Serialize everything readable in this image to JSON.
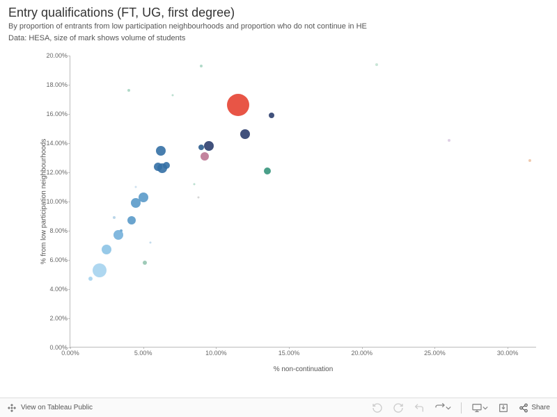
{
  "header": {
    "title": "Entry qualifications (FT, UG, first degree)",
    "subtitle1": "By proportion of entrants from low participation neighbourhoods and proportion who do not continue in HE",
    "subtitle2": "Data: HESA, size of mark shows volume of students"
  },
  "chart": {
    "type": "scatter",
    "x_label": "% non-continuation",
    "y_label": "% from low participation neighbourhoods",
    "xlim": [
      0,
      32
    ],
    "ylim": [
      0,
      20
    ],
    "x_ticks": [
      0,
      5,
      10,
      15,
      20,
      25,
      30
    ],
    "y_ticks": [
      0,
      2,
      4,
      6,
      8,
      10,
      12,
      14,
      16,
      18,
      20
    ],
    "tick_format_pct": true,
    "background_color": "#ffffff",
    "axis_color": "#bbbbbb",
    "label_fontsize": 10,
    "tick_fontsize": 9,
    "points": [
      {
        "x": 11.5,
        "y": 16.6,
        "r": 16,
        "color": "#e74c3c",
        "opacity": 0.95
      },
      {
        "x": 13.8,
        "y": 15.9,
        "r": 4,
        "color": "#2c3e6e",
        "opacity": 0.9
      },
      {
        "x": 12.0,
        "y": 14.6,
        "r": 7,
        "color": "#2c3e6e",
        "opacity": 0.9
      },
      {
        "x": 9.5,
        "y": 13.8,
        "r": 7,
        "color": "#2c3e6e",
        "opacity": 0.9
      },
      {
        "x": 9.0,
        "y": 13.7,
        "r": 4,
        "color": "#2c5d8e",
        "opacity": 0.9
      },
      {
        "x": 6.2,
        "y": 13.5,
        "r": 7,
        "color": "#3470a5",
        "opacity": 0.9
      },
      {
        "x": 9.2,
        "y": 13.1,
        "r": 6,
        "color": "#b86d8d",
        "opacity": 0.85
      },
      {
        "x": 6.0,
        "y": 12.4,
        "r": 6,
        "color": "#3470a5",
        "opacity": 0.9
      },
      {
        "x": 6.3,
        "y": 12.3,
        "r": 7,
        "color": "#3470a5",
        "opacity": 0.9
      },
      {
        "x": 6.6,
        "y": 12.5,
        "r": 5,
        "color": "#3470a5",
        "opacity": 0.9
      },
      {
        "x": 13.5,
        "y": 12.1,
        "r": 5,
        "color": "#2a8e74",
        "opacity": 0.85
      },
      {
        "x": 5.0,
        "y": 10.3,
        "r": 7,
        "color": "#5a9ac9",
        "opacity": 0.9
      },
      {
        "x": 4.5,
        "y": 9.9,
        "r": 7,
        "color": "#5a9ac9",
        "opacity": 0.9
      },
      {
        "x": 4.2,
        "y": 8.7,
        "r": 6,
        "color": "#5a9ac9",
        "opacity": 0.9
      },
      {
        "x": 3.5,
        "y": 8.0,
        "r": 2,
        "color": "#5a9ac9",
        "opacity": 0.85
      },
      {
        "x": 3.3,
        "y": 7.7,
        "r": 7,
        "color": "#74b0da",
        "opacity": 0.9
      },
      {
        "x": 2.5,
        "y": 6.7,
        "r": 7,
        "color": "#8cc3e6",
        "opacity": 0.9
      },
      {
        "x": 2.0,
        "y": 5.3,
        "r": 10,
        "color": "#a0d0ed",
        "opacity": 0.85
      },
      {
        "x": 1.4,
        "y": 4.7,
        "r": 3,
        "color": "#a0d0ed",
        "opacity": 0.85
      },
      {
        "x": 4.0,
        "y": 17.6,
        "r": 2,
        "color": "#8ec9b0",
        "opacity": 0.7
      },
      {
        "x": 9.0,
        "y": 19.3,
        "r": 2,
        "color": "#8ec9b0",
        "opacity": 0.7
      },
      {
        "x": 7.0,
        "y": 17.3,
        "r": 1.5,
        "color": "#8ec9b0",
        "opacity": 0.6
      },
      {
        "x": 8.5,
        "y": 11.2,
        "r": 1.5,
        "color": "#8ec9b0",
        "opacity": 0.6
      },
      {
        "x": 8.8,
        "y": 10.3,
        "r": 1.5,
        "color": "#bbbbbb",
        "opacity": 0.6
      },
      {
        "x": 21.0,
        "y": 19.4,
        "r": 2,
        "color": "#a5d4bd",
        "opacity": 0.6
      },
      {
        "x": 26.0,
        "y": 14.2,
        "r": 2,
        "color": "#c9b0d4",
        "opacity": 0.6
      },
      {
        "x": 31.5,
        "y": 12.8,
        "r": 2,
        "color": "#e6a67a",
        "opacity": 0.6
      },
      {
        "x": 5.1,
        "y": 5.8,
        "r": 3,
        "color": "#7fb8a0",
        "opacity": 0.75
      },
      {
        "x": 5.5,
        "y": 7.2,
        "r": 1.5,
        "color": "#9cc4e0",
        "opacity": 0.6
      },
      {
        "x": 3.0,
        "y": 8.9,
        "r": 2,
        "color": "#9cc4e0",
        "opacity": 0.7
      },
      {
        "x": 4.5,
        "y": 11.0,
        "r": 1.5,
        "color": "#9cc4e0",
        "opacity": 0.5
      }
    ]
  },
  "footer": {
    "tableau_text": "View on Tableau Public",
    "share_label": "Share"
  }
}
